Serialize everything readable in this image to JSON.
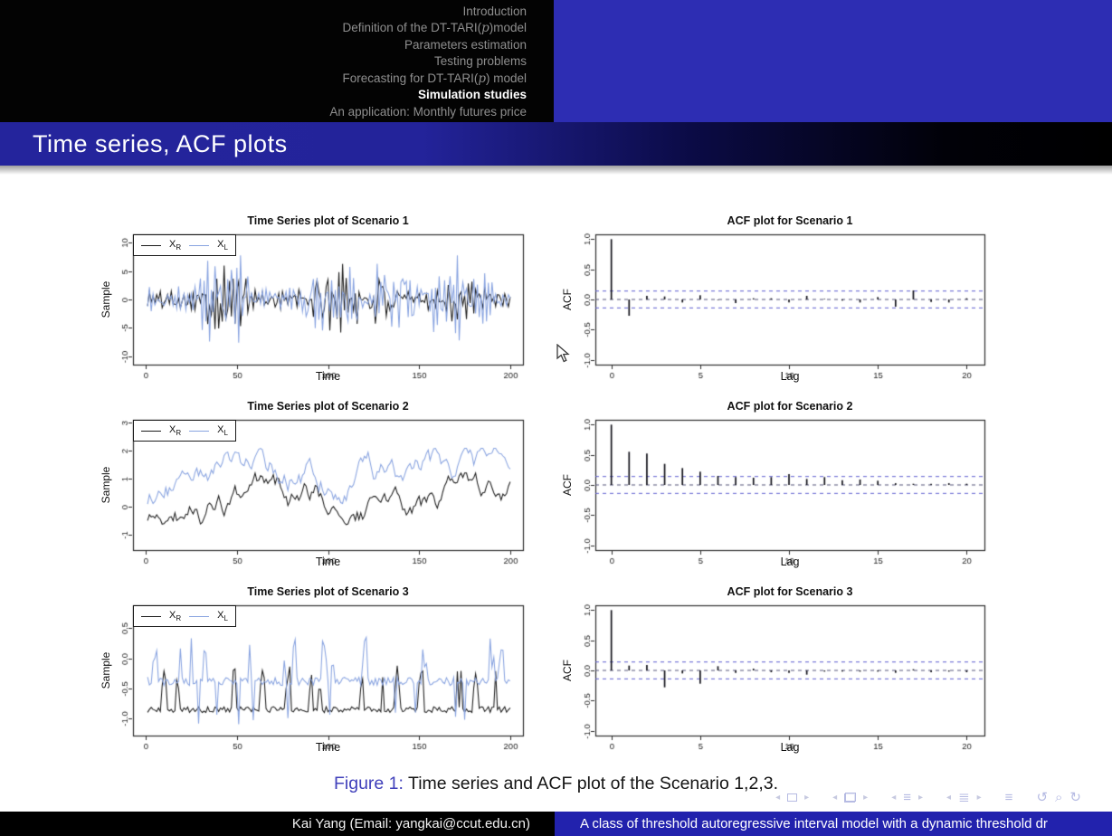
{
  "header": {
    "nav_items": [
      {
        "label": "Introduction",
        "active": false
      },
      {
        "label": "Definition of the DT-TARI(p)model",
        "active": false
      },
      {
        "label": "Parameters estimation",
        "active": false
      },
      {
        "label": "Testing problems",
        "active": false
      },
      {
        "label": "Forecasting for DT-TARI(p) model",
        "active": false
      },
      {
        "label": "Simulation studies",
        "active": true
      },
      {
        "label": "An application: Monthly futures price",
        "active": false
      }
    ],
    "title": "Time series, ACF plots"
  },
  "caption": {
    "prefix": "Figure 1:",
    "text": "Time series and ACF plot of the Scenario 1,2,3."
  },
  "footer": {
    "author": "Kai Yang (Email: yangkai@ccut.edu.cn)",
    "paper_title": "A class of threshold autoregressive interval model with a dynamic threshold dr"
  },
  "nav_symbols": [
    [
      "prev-frame-arrow",
      "frame",
      "next-frame-arrow"
    ],
    [
      "prev-overlay-arrow",
      "frames",
      "next-overlay-arrow"
    ],
    [
      "prev-section-arrow",
      "section-lines",
      "next-section-arrow"
    ],
    [
      "prev-subsection-arrow",
      "subsection-lines",
      "next-subsection-arrow"
    ],
    [
      "toc-lines"
    ],
    [
      "back-history",
      "search",
      "forward-history"
    ]
  ],
  "colors": {
    "header_blue_block": "#2d2db3",
    "title_bar_blue": "#24249c",
    "footer_blue": "#2222ad",
    "series_black": "#1b1b1b",
    "series_blue": "#88a3e0",
    "acf_bar": "#14141c",
    "acf_conf_line": "#5d5dd0",
    "figure_label_blue": "#4040bb"
  },
  "chart_data": [
    {
      "type": "line",
      "title": "Time Series plot of Scenario 1",
      "xlabel": "Time",
      "ylabel": "Sample",
      "xlim": [
        -7,
        207
      ],
      "ylim": [
        -11.5,
        11.5
      ],
      "xticks": [
        0,
        50,
        100,
        150,
        200
      ],
      "xtick_labels": [
        "0",
        "50",
        "100",
        "150",
        "200"
      ],
      "yticks": [
        -10,
        -5,
        0,
        5,
        10
      ],
      "ytick_labels": [
        "-10",
        "-5",
        "0",
        "5",
        "10"
      ],
      "legend": [
        "X_R",
        "X_L"
      ],
      "series": [
        {
          "name": "X_R",
          "color": "#1b1b1b",
          "gen": {
            "kind": "burst",
            "seed": 101,
            "n": 200,
            "ar": -0.45,
            "base_amp": 1.5,
            "burst_amp": 4.6,
            "bursts": [
              [
                33,
                57
              ],
              [
                92,
                117
              ],
              [
                121,
                136
              ],
              [
                165,
                181
              ]
            ],
            "clip": [
              -8.3,
              7.2
            ]
          }
        },
        {
          "name": "X_L",
          "color": "#88a3e0",
          "gen": {
            "kind": "burst",
            "seed": 202,
            "n": 200,
            "ar": -0.5,
            "base_amp": 1.7,
            "burst_amp": 5.2,
            "bursts": [
              [
                30,
                56
              ],
              [
                88,
                116
              ],
              [
                126,
                150
              ],
              [
                158,
                186
              ]
            ],
            "clip": [
              -8.0,
              7.8
            ]
          }
        }
      ]
    },
    {
      "type": "acf",
      "title": "ACF plot for Scenario 1",
      "xlabel": "Lag",
      "ylabel": "ACF",
      "xlim": [
        -0.9,
        21
      ],
      "ylim": [
        -1.08,
        1.08
      ],
      "xticks": [
        0,
        5,
        10,
        15,
        20
      ],
      "xtick_labels": [
        "0",
        "5",
        "10",
        "15",
        "20"
      ],
      "yticks": [
        -1.0,
        -0.5,
        0.0,
        0.5,
        1.0
      ],
      "ytick_labels": [
        "-1.0",
        "-0.5",
        "0.0",
        "0.5",
        "1.0"
      ],
      "conf_band": 0.14,
      "values": [
        1.0,
        -0.27,
        0.06,
        0.05,
        -0.05,
        0.07,
        -0.01,
        -0.06,
        0.02,
        0.02,
        -0.05,
        0.06,
        0.01,
        -0.02,
        -0.05,
        0.04,
        -0.12,
        0.15,
        -0.04,
        -0.05,
        0.02
      ]
    },
    {
      "type": "line",
      "title": "Time Series plot of Scenario 2",
      "xlabel": "Time",
      "ylabel": "Sample",
      "xlim": [
        -7,
        207
      ],
      "ylim": [
        -1.55,
        3.1
      ],
      "xticks": [
        0,
        50,
        100,
        150,
        200
      ],
      "xtick_labels": [
        "0",
        "50",
        "100",
        "150",
        "200"
      ],
      "yticks": [
        -1,
        0,
        1,
        2,
        3
      ],
      "ytick_labels": [
        "-1",
        "0",
        "1",
        "2",
        "3"
      ],
      "legend": [
        "X_R",
        "X_L"
      ],
      "series": [
        {
          "name": "X_R",
          "color": "#1b1b1b",
          "gen": {
            "kind": "walk",
            "seed": 303,
            "n": 200,
            "mean": -0.05,
            "phi": 0.94,
            "step": 0.3,
            "start": -0.8,
            "min": -1.42,
            "max": 1.2
          }
        },
        {
          "name": "X_L",
          "color": "#88a3e0",
          "gen": {
            "kind": "walk",
            "seed": 404,
            "n": 200,
            "mean": 1.15,
            "phi": 0.92,
            "step": 0.32,
            "start": 0.1,
            "min": -0.02,
            "max": 2.08
          }
        }
      ]
    },
    {
      "type": "acf",
      "title": "ACF plot for Scenario 2",
      "xlabel": "Lag",
      "ylabel": "ACF",
      "xlim": [
        -0.9,
        21
      ],
      "ylim": [
        -1.08,
        1.08
      ],
      "xticks": [
        0,
        5,
        10,
        15,
        20
      ],
      "xtick_labels": [
        "0",
        "5",
        "10",
        "15",
        "20"
      ],
      "yticks": [
        -1.0,
        -0.5,
        0.0,
        0.5,
        1.0
      ],
      "ytick_labels": [
        "-1.0",
        "-0.5",
        "0.0",
        "0.5",
        "1.0"
      ],
      "conf_band": 0.14,
      "values": [
        1.0,
        0.55,
        0.52,
        0.35,
        0.28,
        0.22,
        0.15,
        0.13,
        0.12,
        0.13,
        0.18,
        0.1,
        0.13,
        0.08,
        0.09,
        0.07,
        0.03,
        0.02,
        0.02,
        0.03,
        0.02
      ]
    },
    {
      "type": "line",
      "title": "Time Series plot of Scenario 3",
      "xlabel": "Time",
      "ylabel": "Sample",
      "xlim": [
        -7,
        207
      ],
      "ylim": [
        -1.28,
        0.88
      ],
      "xticks": [
        0,
        50,
        100,
        150,
        200
      ],
      "xtick_labels": [
        "0",
        "50",
        "100",
        "150",
        "200"
      ],
      "yticks": [
        -1.0,
        -0.5,
        0.0,
        0.5
      ],
      "ytick_labels": [
        "-1.0",
        "-0.5",
        "0.0",
        "0.5"
      ],
      "legend": [
        "X_R",
        "X_L"
      ],
      "series": [
        {
          "name": "X_R",
          "color": "#1b1b1b",
          "gen": {
            "kind": "spiky",
            "seed": 505,
            "n": 200,
            "base": -0.85,
            "jitter": 0.05,
            "spike_prob": 0.1,
            "spike_level": -0.32,
            "spike_var": 0.22,
            "down_prob": 0,
            "down_level": 0
          }
        },
        {
          "name": "X_L",
          "color": "#88a3e0",
          "gen": {
            "kind": "spiky",
            "seed": 606,
            "n": 200,
            "base": -0.38,
            "jitter": 0.07,
            "spike_prob": 0.1,
            "spike_level": 0.12,
            "spike_var": 0.28,
            "down_prob": 0.06,
            "down_level": -0.9
          }
        }
      ]
    },
    {
      "type": "acf",
      "title": "ACF plot for Scenario 3",
      "xlabel": "Lag",
      "ylabel": "ACF",
      "xlim": [
        -0.9,
        21
      ],
      "ylim": [
        -1.08,
        1.08
      ],
      "xticks": [
        0,
        5,
        10,
        15,
        20
      ],
      "xtick_labels": [
        "0",
        "5",
        "10",
        "15",
        "20"
      ],
      "yticks": [
        -1.0,
        -0.5,
        0.0,
        0.5,
        1.0
      ],
      "ytick_labels": [
        "-1.0",
        "-0.5",
        "0.0",
        "0.5",
        "1.0"
      ],
      "conf_band": 0.14,
      "values": [
        1.0,
        0.08,
        0.09,
        -0.28,
        -0.05,
        -0.22,
        0.07,
        -0.04,
        0.03,
        -0.03,
        -0.04,
        -0.07,
        -0.02,
        -0.02,
        -0.02,
        -0.02,
        -0.04,
        0.02,
        -0.03,
        -0.02,
        -0.03
      ]
    }
  ]
}
